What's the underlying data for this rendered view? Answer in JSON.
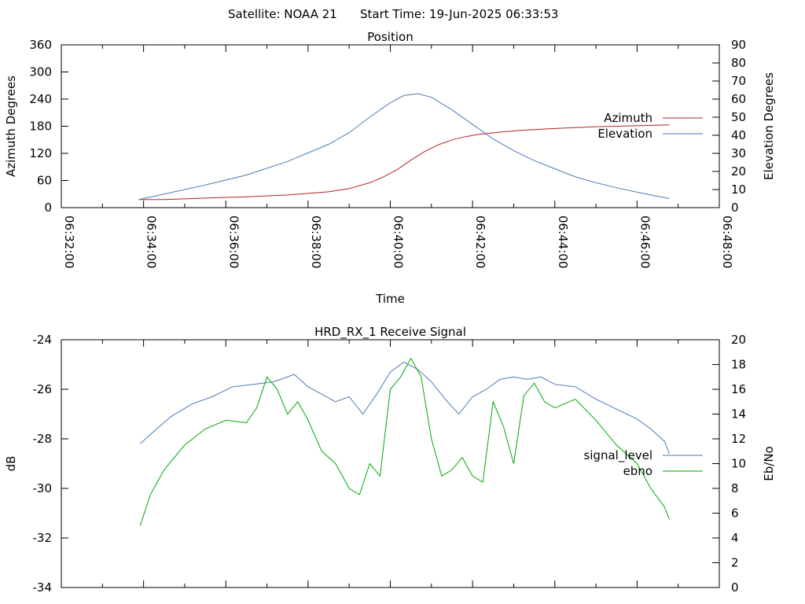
{
  "header": {
    "satellite": "Satellite: NOAA 21",
    "start_time": "Start Time: 19-Jun-2025 06:33:53"
  },
  "chart_data": [
    {
      "type": "line",
      "title": "Position",
      "xlabel": "Time",
      "ylabel": "Azimuth Degrees",
      "y2label": "Elevation Degrees",
      "xlim": [
        "06:32:00",
        "06:48:00"
      ],
      "ylim": [
        0,
        360
      ],
      "y2lim": [
        0,
        90
      ],
      "xticks": [
        "06:32:00",
        "06:34:00",
        "06:36:00",
        "06:38:00",
        "06:40:00",
        "06:42:00",
        "06:44:00",
        "06:46:00",
        "06:48:00"
      ],
      "yticks": [
        0,
        60,
        120,
        180,
        240,
        300,
        360
      ],
      "y2ticks": [
        0,
        10,
        20,
        30,
        40,
        50,
        60,
        70,
        80,
        90
      ],
      "legend_position": "right",
      "series": [
        {
          "name": "Azimuth",
          "axis": "y",
          "color": "#b22222",
          "x": [
            "06:33:53",
            "06:34:30",
            "06:35:30",
            "06:36:30",
            "06:37:30",
            "06:38:30",
            "06:39:00",
            "06:39:30",
            "06:39:50",
            "06:40:10",
            "06:40:30",
            "06:40:50",
            "06:41:10",
            "06:41:30",
            "06:41:50",
            "06:42:10",
            "06:42:40",
            "06:43:10",
            "06:44:00",
            "06:45:00",
            "06:46:00",
            "06:46:47"
          ],
          "values": [
            18,
            18,
            21,
            24,
            28,
            35,
            42,
            55,
            68,
            84,
            105,
            124,
            139,
            150,
            157,
            162,
            167,
            171,
            175,
            179,
            181,
            183
          ]
        },
        {
          "name": "Elevation",
          "axis": "y2",
          "color": "#4a7ab5",
          "x": [
            "06:33:53",
            "06:34:30",
            "06:35:30",
            "06:36:30",
            "06:37:30",
            "06:38:30",
            "06:39:00",
            "06:39:30",
            "06:40:00",
            "06:40:20",
            "06:40:40",
            "06:41:00",
            "06:41:30",
            "06:42:00",
            "06:42:30",
            "06:43:00",
            "06:43:30",
            "06:44:00",
            "06:44:30",
            "06:45:00",
            "06:45:30",
            "06:46:00",
            "06:46:47"
          ],
          "values": [
            4.5,
            7.5,
            12.5,
            18,
            25.5,
            35,
            41.5,
            50,
            58,
            62,
            63,
            61,
            54,
            46,
            38,
            31.5,
            26,
            21.5,
            17,
            13.8,
            11,
            8.5,
            5
          ]
        }
      ]
    },
    {
      "type": "line",
      "title": "HRD_RX_1 Receive Signal",
      "xlabel": "",
      "ylabel": "dB",
      "y2label": "Eb/No",
      "xlim": [
        "06:32:00",
        "06:48:00"
      ],
      "ylim": [
        -34,
        -24
      ],
      "y2lim": [
        0,
        20
      ],
      "yticks": [
        -34,
        -32,
        -30,
        -28,
        -26,
        -24
      ],
      "y2ticks": [
        0,
        2,
        4,
        6,
        8,
        10,
        12,
        14,
        16,
        18,
        20
      ],
      "legend_position": "right",
      "series": [
        {
          "name": "signal_level",
          "axis": "y",
          "color": "#4a7ab5",
          "x": [
            "06:33:55",
            "06:34:15",
            "06:34:40",
            "06:35:10",
            "06:35:40",
            "06:36:10",
            "06:36:40",
            "06:37:10",
            "06:37:40",
            "06:38:00",
            "06:38:20",
            "06:38:40",
            "06:39:00",
            "06:39:20",
            "06:39:40",
            "06:40:00",
            "06:40:20",
            "06:40:40",
            "06:41:00",
            "06:41:20",
            "06:41:40",
            "06:42:00",
            "06:42:20",
            "06:42:40",
            "06:43:00",
            "06:43:20",
            "06:43:40",
            "06:44:00",
            "06:44:30",
            "06:45:00",
            "06:45:30",
            "06:46:00",
            "06:46:20",
            "06:46:40",
            "06:46:47"
          ],
          "values": [
            -28.2,
            -27.7,
            -27.1,
            -26.6,
            -26.3,
            -25.9,
            -25.8,
            -25.7,
            -25.4,
            -25.9,
            -26.2,
            -26.5,
            -26.3,
            -27.0,
            -26.2,
            -25.3,
            -24.9,
            -25.2,
            -25.7,
            -26.4,
            -27.0,
            -26.3,
            -26.0,
            -25.6,
            -25.5,
            -25.6,
            -25.5,
            -25.8,
            -25.9,
            -26.4,
            -26.8,
            -27.2,
            -27.6,
            -28.1,
            -28.6
          ]
        },
        {
          "name": "ebno",
          "axis": "y2",
          "color": "#00aa00",
          "x": [
            "06:33:55",
            "06:34:10",
            "06:34:30",
            "06:35:00",
            "06:35:30",
            "06:36:00",
            "06:36:30",
            "06:36:45",
            "06:37:00",
            "06:37:15",
            "06:37:30",
            "06:37:45",
            "06:38:00",
            "06:38:20",
            "06:38:40",
            "06:39:00",
            "06:39:15",
            "06:39:30",
            "06:39:45",
            "06:40:00",
            "06:40:15",
            "06:40:30",
            "06:40:45",
            "06:41:00",
            "06:41:15",
            "06:41:30",
            "06:41:45",
            "06:42:00",
            "06:42:15",
            "06:42:30",
            "06:42:45",
            "06:43:00",
            "06:43:15",
            "06:43:30",
            "06:43:45",
            "06:44:00",
            "06:44:30",
            "06:45:00",
            "06:45:30",
            "06:46:00",
            "06:46:20",
            "06:46:40",
            "06:46:47"
          ],
          "values": [
            5,
            7.5,
            9.5,
            11.5,
            12.8,
            13.5,
            13.3,
            14.5,
            17,
            16,
            14,
            15,
            13.5,
            11,
            10,
            8,
            7.5,
            10,
            9,
            16,
            17,
            18.5,
            17,
            12,
            9,
            9.5,
            10.5,
            9,
            8.5,
            15,
            13,
            10,
            15.5,
            16.5,
            15,
            14.5,
            15.2,
            13.5,
            11.5,
            10,
            8,
            6.5,
            5.5
          ]
        }
      ]
    }
  ]
}
